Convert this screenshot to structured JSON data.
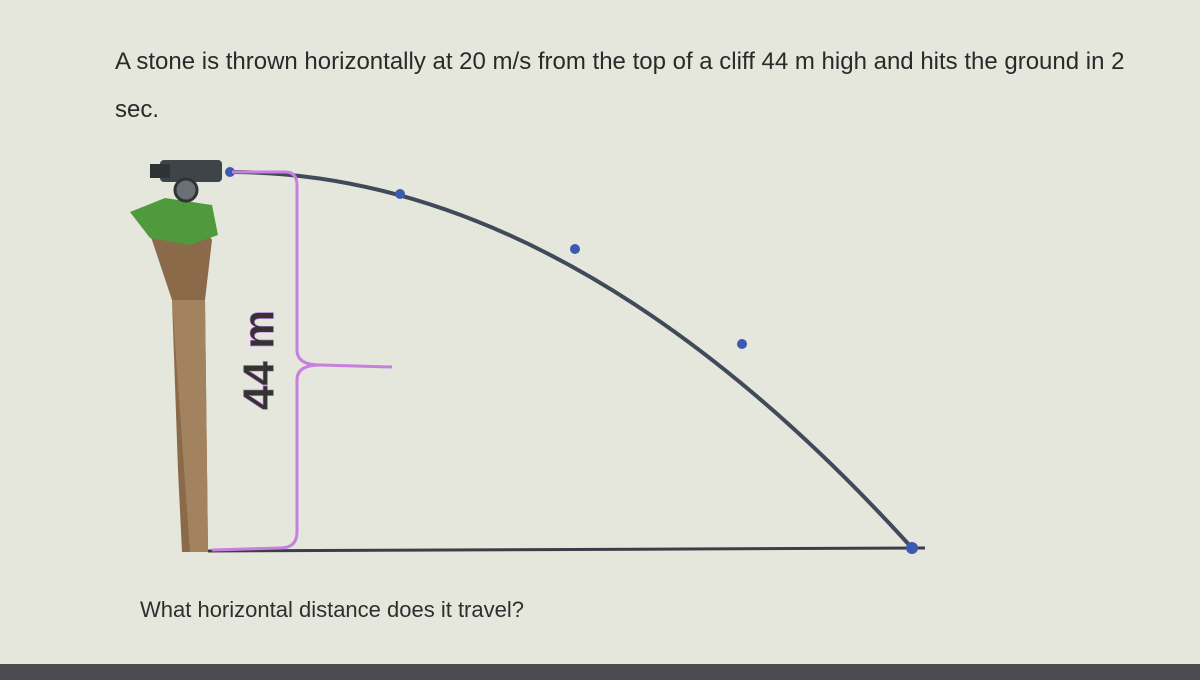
{
  "problem": {
    "statement": "A stone is thrown horizontally at 20 m/s from the top of a cliff 44 m high and hits the ground in 2 sec.",
    "figure_label": "44 m",
    "question": "What horizontal distance does it travel?"
  }
}
